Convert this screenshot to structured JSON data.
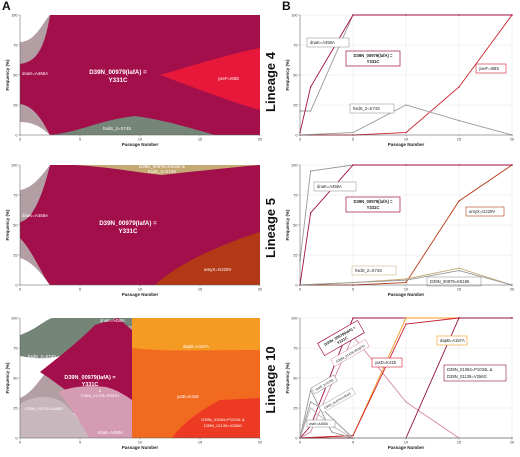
{
  "figure": {
    "panel_a_label": "A",
    "panel_b_label": "B",
    "lineage_labels": [
      "Lineage 4",
      "Lineage 5",
      "Lineage 10"
    ]
  },
  "colors": {
    "lafA": "#a30f4a",
    "dnaK": "#b39ea3",
    "yxeF": "#e8183a",
    "hsdS": "#758578",
    "D39N_00979_K818K": "#c4a975",
    "amyX": "#b33916",
    "dapB": "#f59a22",
    "yutD": "#f26a1f",
    "D39N_01094": "#ec3a23",
    "D39N_01478": "#d59bb2",
    "D39N_01074": "#c8b8bd"
  },
  "chart_data": [
    {
      "panel": "A",
      "lineage": "Lineage 4",
      "type": "area",
      "xlabel": "Passage Number",
      "ylabel": "Frequency (%)",
      "xlim": [
        0,
        20
      ],
      "ylim": [
        0,
        100
      ],
      "x_ticks": [
        0,
        5,
        10,
        15,
        20
      ],
      "y_ticks": [
        0,
        25,
        50,
        75,
        100
      ],
      "labels": [
        {
          "text": "dnaK=A458A",
          "color": "dark"
        },
        {
          "text": "D39N_00979(lafA) =",
          "color": "light",
          "size": 6.2,
          "bold": true
        },
        {
          "text": "Y331C",
          "color": "light",
          "size": 6.2,
          "bold": true
        },
        {
          "text": "yxeF=I68S",
          "color": "light"
        },
        {
          "text": "hsdS_2=S74S",
          "color": "dark"
        }
      ]
    },
    {
      "panel": "B",
      "lineage": "Lineage 4",
      "type": "line",
      "xlabel": "Passage Number",
      "ylabel": "Frequency (%)",
      "xlim": [
        0,
        20
      ],
      "ylim": [
        0,
        100
      ],
      "x_ticks": [
        0,
        5,
        10,
        15,
        20
      ],
      "y_ticks": [
        0,
        25,
        50,
        75,
        100
      ],
      "series": [
        {
          "name": "dnaK=A458A",
          "color": "#999999",
          "x": [
            0,
            1,
            5,
            10,
            15,
            20
          ],
          "y": [
            20,
            20,
            100,
            100,
            100,
            100
          ]
        },
        {
          "name": "D39N_00979(lafA) = Y331C",
          "color": "#a30f4a",
          "x": [
            0,
            1,
            5,
            10,
            15,
            20
          ],
          "y": [
            2,
            40,
            100,
            100,
            100,
            100
          ]
        },
        {
          "name": "yxeF=I68S",
          "color": "#cc1f2e",
          "x": [
            0,
            5,
            10,
            15,
            20
          ],
          "y": [
            0,
            0,
            2,
            40,
            100
          ]
        },
        {
          "name": "hsdS_2=S74S",
          "color": "#999999",
          "x": [
            0,
            5,
            10,
            15,
            20
          ],
          "y": [
            0,
            2,
            25,
            12,
            0
          ]
        }
      ],
      "labels": [
        {
          "text": "dnaK=A458A",
          "color": "#777777"
        },
        {
          "text": "D39N_00979(lafA) =",
          "color": "#a30f4a",
          "bold": true
        },
        {
          "text": "Y331C",
          "color": "#a30f4a",
          "bold": true
        },
        {
          "text": "yxeF=I68S",
          "color": "#cc1f2e"
        },
        {
          "text": "hsdS_2=S74S",
          "color": "#777777"
        }
      ]
    },
    {
      "panel": "A",
      "lineage": "Lineage 5",
      "type": "area",
      "xlabel": "Passage Number",
      "ylabel": "Frequency (%)",
      "xlim": [
        0,
        20
      ],
      "ylim": [
        0,
        100
      ],
      "x_ticks": [
        0,
        5,
        10,
        15,
        20
      ],
      "y_ticks": [
        0,
        25,
        50,
        75,
        100
      ],
      "labels": [
        {
          "text": "D39N_00979=K818K &",
          "color": "dark"
        },
        {
          "text": "hsdS_2=S74S",
          "color": "dark"
        },
        {
          "text": "dnaK=A458A",
          "color": "dark"
        },
        {
          "text": "D39N_00979(lafA) =",
          "color": "light",
          "size": 6.2,
          "bold": true
        },
        {
          "text": "Y331C",
          "color": "light",
          "size": 6.2,
          "bold": true
        },
        {
          "text": "amyX=G229V",
          "color": "light"
        }
      ]
    },
    {
      "panel": "B",
      "lineage": "Lineage 5",
      "type": "line",
      "xlabel": "Passage Number",
      "ylabel": "Frequency (%)",
      "xlim": [
        0,
        20
      ],
      "ylim": [
        0,
        100
      ],
      "x_ticks": [
        0,
        5,
        10,
        15,
        20
      ],
      "y_ticks": [
        0,
        25,
        50,
        75,
        100
      ],
      "series": [
        {
          "name": "dnaK=A458A",
          "color": "#999999",
          "x": [
            0,
            1,
            5,
            10,
            15,
            20
          ],
          "y": [
            20,
            95,
            100,
            100,
            100,
            100
          ]
        },
        {
          "name": "D39N_00979(lafA) = Y331C",
          "color": "#a30f4a",
          "x": [
            0,
            1,
            5,
            10,
            15,
            20
          ],
          "y": [
            0,
            60,
            100,
            100,
            100,
            100
          ]
        },
        {
          "name": "amyX=G229V",
          "color": "#b33916",
          "x": [
            0,
            5,
            10,
            15,
            20
          ],
          "y": [
            0,
            0,
            2,
            70,
            100
          ]
        },
        {
          "name": "hsdS_2=S74S",
          "color": "#c4a975",
          "x": [
            0,
            5,
            10,
            15,
            20
          ],
          "y": [
            0,
            2,
            5,
            14,
            0
          ]
        },
        {
          "name": "D39N_00979=K818K",
          "color": "#999999",
          "x": [
            0,
            5,
            10,
            15,
            20
          ],
          "y": [
            0,
            2,
            4,
            12,
            0
          ]
        }
      ],
      "labels": [
        {
          "text": "dnaK=A458A",
          "color": "#777777"
        },
        {
          "text": "D39N_00979(lafA) =",
          "color": "#a30f4a",
          "bold": true
        },
        {
          "text": "Y331C",
          "color": "#a30f4a",
          "bold": true
        },
        {
          "text": "amyX=G229V",
          "color": "#b33916"
        },
        {
          "text": "hsdS_2=S74S",
          "color": "#a08858"
        },
        {
          "text": "D39N_00979=K818K",
          "color": "#777777"
        }
      ]
    },
    {
      "panel": "A",
      "lineage": "Lineage 10",
      "type": "area",
      "xlabel": "Passage Number",
      "ylabel": "Frequency (%)",
      "xlim": [
        0,
        20
      ],
      "ylim": [
        0,
        100
      ],
      "x_ticks": [
        0,
        5,
        10,
        15,
        20
      ],
      "y_ticks": [
        0,
        25,
        50,
        75,
        100
      ],
      "labels": [
        {
          "text": "dnaK=A458A",
          "color": "dark"
        },
        {
          "text": "hsdS_2=S74S",
          "color": "dark"
        },
        {
          "text": "D39N_00979(lafA) =",
          "color": "light",
          "size": 5.5,
          "bold": true
        },
        {
          "text": "Y331C",
          "color": "light",
          "size": 5.5,
          "bold": true
        },
        {
          "text": "&",
          "color": "light"
        },
        {
          "text": "D39N_01478=R397H",
          "color": "light"
        },
        {
          "text": "D39N_01074=A456S",
          "color": "light"
        },
        {
          "text": "dnaK=A458A",
          "color": "dark"
        },
        {
          "text": "dapB=A157A",
          "color": "dark"
        },
        {
          "text": "yutD=K41E",
          "color": "light"
        },
        {
          "text": "D39N_01094=P1034L &",
          "color": "light"
        },
        {
          "text": "D39N_01139=V256G",
          "color": "light"
        }
      ]
    },
    {
      "panel": "B",
      "lineage": "Lineage 10",
      "type": "line",
      "xlabel": "Passage Number",
      "ylabel": "Frequency (%)",
      "xlim": [
        0,
        20
      ],
      "ylim": [
        0,
        100
      ],
      "x_ticks": [
        0,
        5,
        10,
        15,
        20
      ],
      "y_ticks": [
        0,
        25,
        50,
        75,
        100
      ],
      "series": [
        {
          "name": "D39N_00979(lafA) = Y331C",
          "color": "#a30f4a",
          "x": [
            0,
            1,
            5,
            10,
            15,
            20
          ],
          "y": [
            0,
            10,
            100,
            100,
            100,
            100
          ]
        },
        {
          "name": "D39N_01478=R397H",
          "color": "#d48aa6",
          "x": [
            0,
            1,
            5,
            10,
            15,
            20
          ],
          "y": [
            0,
            5,
            85,
            30,
            0,
            0
          ]
        },
        {
          "name": "dapB=A157A",
          "color": "#f59a22",
          "x": [
            0,
            5,
            10,
            15,
            20
          ],
          "y": [
            0,
            2,
            100,
            100,
            100
          ]
        },
        {
          "name": "yutD=K41E",
          "color": "#cc1f2e",
          "x": [
            0,
            5,
            10,
            15,
            20
          ],
          "y": [
            0,
            2,
            95,
            100,
            100
          ]
        },
        {
          "name": "D39N_01094=P1034L & D39N_01139=V256G",
          "color": "#8f1540",
          "x": [
            0,
            10,
            15,
            20
          ],
          "y": [
            0,
            0,
            100,
            100
          ]
        },
        {
          "name": "hsdS_2=S74S",
          "color": "#999999",
          "x": [
            0,
            1,
            2,
            5,
            10,
            20
          ],
          "y": [
            0,
            30,
            25,
            0,
            0,
            0
          ]
        },
        {
          "name": "dnaK=A458A",
          "color": "#999999",
          "x": [
            0,
            1,
            3,
            5,
            10,
            20
          ],
          "y": [
            0,
            40,
            5,
            0,
            0,
            0
          ]
        },
        {
          "name": "D39N_01074=A456S",
          "color": "#bbbbbb",
          "x": [
            0,
            1,
            3,
            5,
            10,
            20
          ],
          "y": [
            0,
            25,
            10,
            0,
            0,
            0
          ]
        }
      ],
      "labels": [
        {
          "text": "D39N_00979(lafA) =",
          "color": "#a30f4a",
          "bold": true
        },
        {
          "text": "Y331C",
          "color": "#a30f4a",
          "bold": true
        },
        {
          "text": "D39N_01478=R397H",
          "color": "#d48aa6"
        },
        {
          "text": "dapB=A157A",
          "color": "#d08018"
        },
        {
          "text": "yutD=K41E",
          "color": "#cc1f2e"
        },
        {
          "text": "D39N_01094=P1034L &",
          "color": "#8f1540"
        },
        {
          "text": "D39N_01139=V256G",
          "color": "#8f1540"
        },
        {
          "text": "hsdS_2=S74S",
          "color": "#777777"
        },
        {
          "text": "dnaK=A458A",
          "color": "#777777"
        },
        {
          "text": "D39N_01074=A456S",
          "color": "#999999"
        }
      ]
    }
  ]
}
